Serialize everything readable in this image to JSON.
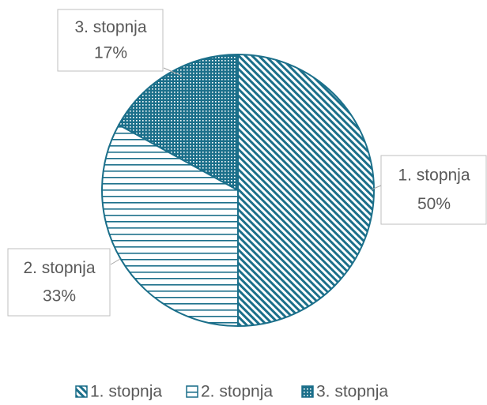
{
  "chart_data": {
    "type": "pie",
    "categories": [
      "1. stopnja",
      "2. stopnja",
      "3. stopnja"
    ],
    "values": [
      50,
      33,
      17
    ],
    "value_labels": [
      "50%",
      "33%",
      "17%"
    ],
    "color": "#1b6f8a",
    "legend": "bottom"
  }
}
